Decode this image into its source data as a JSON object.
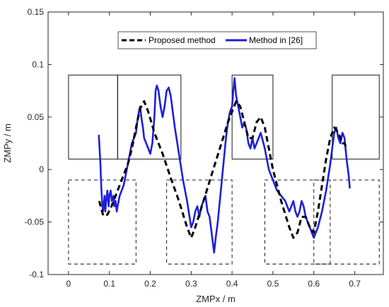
{
  "chart_data": {
    "type": "line",
    "title": "",
    "xlabel": "ZMPx / m",
    "ylabel": "ZMPy / m",
    "xlim": [
      -0.05,
      0.77
    ],
    "ylim": [
      -0.1,
      0.15
    ],
    "x_ticks": [
      0,
      0.1,
      0.2,
      0.3,
      0.4,
      0.5,
      0.6,
      0.7
    ],
    "y_ticks": [
      -0.1,
      -0.05,
      0,
      0.05,
      0.1,
      0.15
    ],
    "x_tick_labels": [
      "0",
      "0.1",
      "0.2",
      "0.3",
      "0.4",
      "0.5",
      "0.6",
      "0.7"
    ],
    "y_tick_labels": [
      "-0.1",
      "-0.05",
      "0",
      "0.05",
      "0.1",
      "0.15"
    ],
    "grid": false,
    "legend": {
      "position": "top-center",
      "entries": [
        "Proposed method",
        "Method in [26]"
      ]
    },
    "series": [
      {
        "name": "Proposed method",
        "color": "#000000",
        "style": "dashed",
        "x": [
          0.075,
          0.085,
          0.095,
          0.105,
          0.115,
          0.125,
          0.135,
          0.145,
          0.155,
          0.165,
          0.175,
          0.185,
          0.195,
          0.21,
          0.23,
          0.25,
          0.27,
          0.29,
          0.3,
          0.31,
          0.33,
          0.35,
          0.37,
          0.39,
          0.41,
          0.42,
          0.43,
          0.44,
          0.45,
          0.46,
          0.47,
          0.48,
          0.49,
          0.5,
          0.52,
          0.54,
          0.55,
          0.56,
          0.57,
          0.58,
          0.59,
          0.6,
          0.61,
          0.62,
          0.63,
          0.64,
          0.65,
          0.66,
          0.67,
          0.675,
          0.68
        ],
        "y": [
          -0.03,
          -0.044,
          -0.043,
          -0.035,
          -0.025,
          -0.015,
          -0.005,
          0.005,
          0.02,
          0.04,
          0.058,
          0.065,
          0.055,
          0.035,
          0.015,
          -0.008,
          -0.03,
          -0.055,
          -0.065,
          -0.055,
          -0.03,
          -0.005,
          0.02,
          0.045,
          0.065,
          0.06,
          0.045,
          0.03,
          0.03,
          0.045,
          0.05,
          0.04,
          0.02,
          0.0,
          -0.03,
          -0.055,
          -0.065,
          -0.06,
          -0.045,
          -0.045,
          -0.055,
          -0.06,
          -0.04,
          -0.015,
          0.01,
          0.03,
          0.04,
          0.035,
          0.025,
          0.025,
          0.02
        ]
      },
      {
        "name": "Method in [26]",
        "color": "#1f1fdb",
        "style": "solid",
        "x": [
          0.074,
          0.076,
          0.078,
          0.08,
          0.082,
          0.084,
          0.086,
          0.088,
          0.09,
          0.092,
          0.095,
          0.098,
          0.1,
          0.103,
          0.106,
          0.11,
          0.112,
          0.115,
          0.118,
          0.12,
          0.125,
          0.13,
          0.135,
          0.14,
          0.145,
          0.15,
          0.155,
          0.16,
          0.165,
          0.168,
          0.172,
          0.175,
          0.178,
          0.182,
          0.185,
          0.19,
          0.195,
          0.2,
          0.205,
          0.21,
          0.213,
          0.216,
          0.22,
          0.225,
          0.23,
          0.235,
          0.24,
          0.245,
          0.25,
          0.255,
          0.26,
          0.27,
          0.28,
          0.29,
          0.3,
          0.305,
          0.31,
          0.315,
          0.32,
          0.325,
          0.33,
          0.335,
          0.34,
          0.345,
          0.35,
          0.353,
          0.356,
          0.36,
          0.365,
          0.37,
          0.375,
          0.38,
          0.385,
          0.39,
          0.395,
          0.4,
          0.403,
          0.406,
          0.41,
          0.415,
          0.42,
          0.425,
          0.43,
          0.435,
          0.44,
          0.445,
          0.45,
          0.455,
          0.46,
          0.465,
          0.47,
          0.48,
          0.49,
          0.5,
          0.51,
          0.52,
          0.53,
          0.54,
          0.545,
          0.55,
          0.555,
          0.56,
          0.565,
          0.57,
          0.575,
          0.58,
          0.585,
          0.59,
          0.595,
          0.6,
          0.61,
          0.62,
          0.63,
          0.64,
          0.645,
          0.65,
          0.655,
          0.66,
          0.665,
          0.67,
          0.675,
          0.68,
          0.685,
          0.688
        ],
        "y": [
          0.033,
          0.02,
          0.005,
          -0.015,
          -0.03,
          -0.04,
          -0.035,
          -0.025,
          -0.04,
          -0.03,
          -0.02,
          -0.035,
          -0.025,
          -0.02,
          -0.03,
          -0.025,
          -0.035,
          -0.03,
          -0.04,
          -0.035,
          -0.025,
          -0.02,
          -0.015,
          -0.005,
          0.005,
          0.015,
          0.025,
          0.03,
          0.035,
          0.045,
          0.055,
          0.06,
          0.05,
          0.04,
          0.03,
          0.025,
          0.02,
          0.015,
          0.025,
          0.05,
          0.075,
          0.08,
          0.075,
          0.06,
          0.05,
          0.06,
          0.075,
          0.078,
          0.07,
          0.055,
          0.04,
          0.015,
          -0.01,
          -0.03,
          -0.055,
          -0.05,
          -0.04,
          -0.035,
          -0.045,
          -0.035,
          -0.03,
          -0.025,
          -0.04,
          -0.045,
          -0.06,
          -0.07,
          -0.079,
          -0.065,
          -0.05,
          -0.03,
          -0.01,
          0.01,
          0.03,
          0.045,
          0.055,
          0.06,
          0.075,
          0.087,
          0.07,
          0.06,
          0.05,
          0.04,
          0.045,
          0.038,
          0.025,
          0.02,
          0.03,
          0.02,
          0.025,
          0.03,
          0.035,
          0.02,
          0.0,
          -0.01,
          -0.02,
          -0.025,
          -0.03,
          -0.04,
          -0.035,
          -0.03,
          -0.04,
          -0.045,
          -0.04,
          -0.03,
          -0.035,
          -0.045,
          -0.05,
          -0.055,
          -0.06,
          -0.065,
          -0.055,
          -0.04,
          -0.02,
          0.005,
          0.02,
          0.035,
          0.04,
          0.03,
          0.025,
          0.035,
          0.03,
          0.01,
          -0.005,
          -0.018
        ]
      }
    ],
    "support_rectangles": [
      {
        "style": "solid",
        "x": [
          0.0,
          0.12
        ],
        "y": [
          0.01,
          0.09
        ]
      },
      {
        "style": "solid",
        "x": [
          0.12,
          0.275
        ],
        "y": [
          0.01,
          0.09
        ]
      },
      {
        "style": "solid",
        "x": [
          0.4,
          0.5
        ],
        "y": [
          0.01,
          0.09
        ]
      },
      {
        "style": "solid",
        "x": [
          0.645,
          0.76
        ],
        "y": [
          0.01,
          0.09
        ]
      },
      {
        "style": "dashed",
        "x": [
          0.0,
          0.165
        ],
        "y": [
          -0.09,
          -0.01
        ]
      },
      {
        "style": "dashed",
        "x": [
          0.24,
          0.4
        ],
        "y": [
          -0.09,
          -0.01
        ]
      },
      {
        "style": "dashed",
        "x": [
          0.48,
          0.64
        ],
        "y": [
          -0.09,
          -0.01
        ]
      },
      {
        "style": "dashed",
        "x": [
          0.6,
          0.76
        ],
        "y": [
          -0.09,
          -0.01
        ]
      }
    ]
  }
}
